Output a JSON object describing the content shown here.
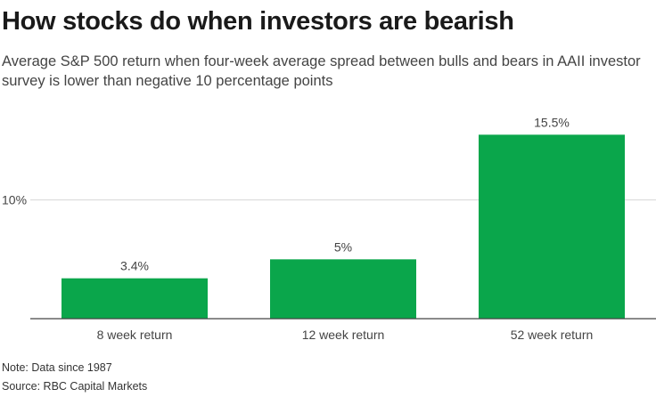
{
  "title": "How stocks do when investors are bearish",
  "subtitle": "Average S&P 500 return when four-week average spread between bulls and bears in AAII investor survey is lower than negative 10 percentage points",
  "note": "Note: Data since 1987",
  "source": "Source: RBC Capital Markets",
  "colors": {
    "bar": "#0aa64b",
    "grid": "#d6d6d6",
    "axis": "#444444"
  },
  "chart_data": {
    "type": "bar",
    "title": "How stocks do when investors are bearish",
    "subtitle": "Average S&P 500 return when four-week average spread between bulls and bears in AAII investor survey is lower than negative 10 percentage points",
    "categories": [
      "8 week return",
      "12 week return",
      "52 week return"
    ],
    "values": [
      3.4,
      5,
      15.5
    ],
    "data_labels": [
      "3.4%",
      "5%",
      "15.5%"
    ],
    "yticks": [
      10
    ],
    "ytick_labels": [
      "10%"
    ],
    "ylim": [
      0,
      16.5
    ],
    "grid": true,
    "legend": "none"
  }
}
